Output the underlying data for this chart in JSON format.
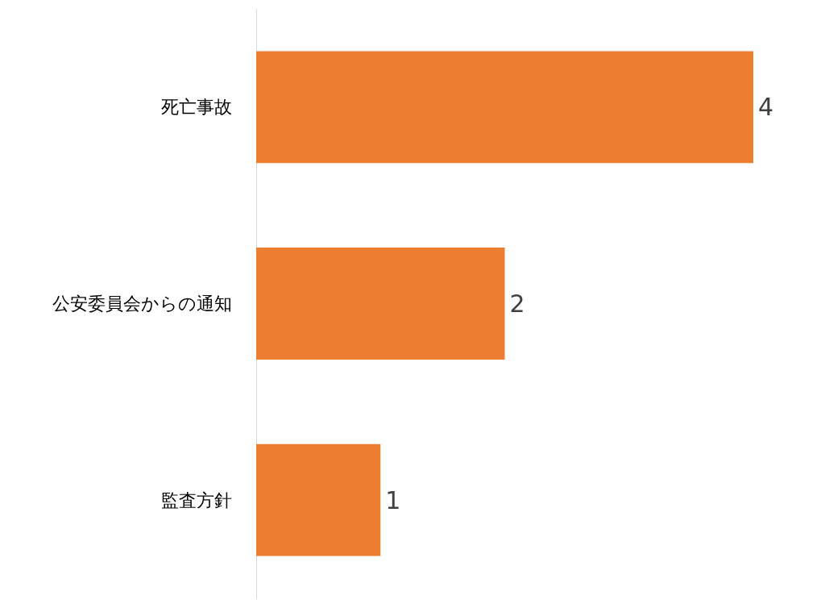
{
  "chart_data": {
    "type": "bar",
    "orientation": "horizontal",
    "categories": [
      "死亡事故",
      "公安委員会からの通知",
      "監査方針"
    ],
    "values": [
      4,
      2,
      1
    ],
    "color": "#ed7d31",
    "data_labels": true
  }
}
